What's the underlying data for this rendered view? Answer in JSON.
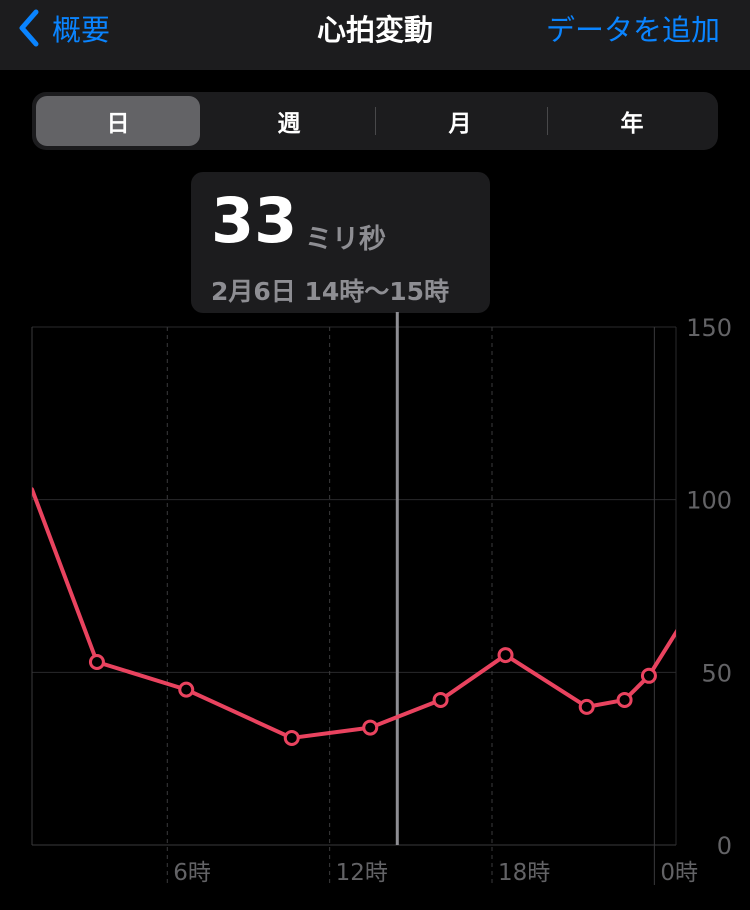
{
  "navbar": {
    "back_label": "概要",
    "title": "心拍変動",
    "add_label": "データを追加"
  },
  "segments": [
    {
      "label": "日",
      "active": true
    },
    {
      "label": "週",
      "active": false
    },
    {
      "label": "月",
      "active": false
    },
    {
      "label": "年",
      "active": false
    }
  ],
  "tooltip": {
    "value": "33",
    "unit": "ミリ秒",
    "time": "2月6日 14時〜15時"
  },
  "colors": {
    "accent": "#0a84ff",
    "line": "#e9435f",
    "background": "#000000"
  },
  "chart_data": {
    "type": "line",
    "y_ticks": [
      "150",
      "100",
      "50",
      "0"
    ],
    "ylim": [
      0,
      150
    ],
    "xlim": [
      1,
      24.8
    ],
    "x_ticks": [
      {
        "label": "6時",
        "x": 6
      },
      {
        "label": "12時",
        "x": 12
      },
      {
        "label": "18時",
        "x": 18
      },
      {
        "label": "0時",
        "x": 24
      }
    ],
    "grid": true,
    "selected_x": 14.5,
    "series": [
      {
        "x": [
          1.0,
          3.4,
          6.7,
          10.6,
          13.5,
          16.1,
          18.5,
          21.5,
          22.9,
          23.8,
          25.4,
          26.0
        ],
        "y": [
          103,
          53,
          45,
          31,
          34,
          42,
          55,
          40,
          42,
          49,
          69,
          61
        ]
      }
    ]
  }
}
